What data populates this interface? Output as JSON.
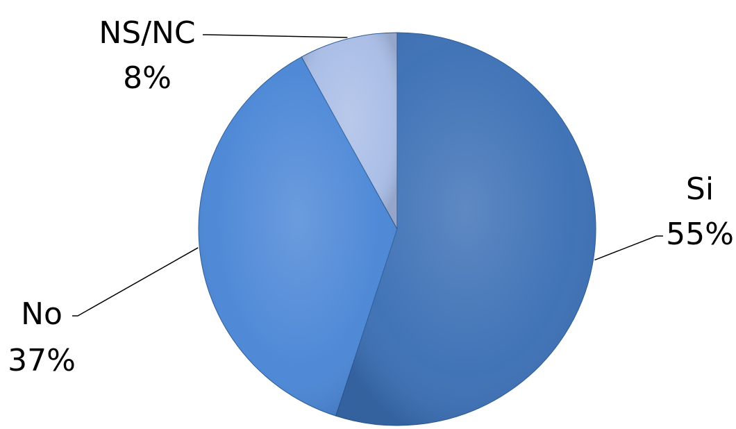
{
  "chart_data": {
    "type": "pie",
    "slices": [
      {
        "label": "Si",
        "value": 55,
        "value_label": "55%",
        "color": "#3b6fb5"
      },
      {
        "label": "No",
        "value": 37,
        "value_label": "37%",
        "color": "#4a86d6"
      },
      {
        "label": "NS/NC",
        "value": 8,
        "value_label": "8%",
        "color": "#a9bde6"
      }
    ],
    "legend": "none",
    "data_labels": "outside-with-leader-lines"
  }
}
